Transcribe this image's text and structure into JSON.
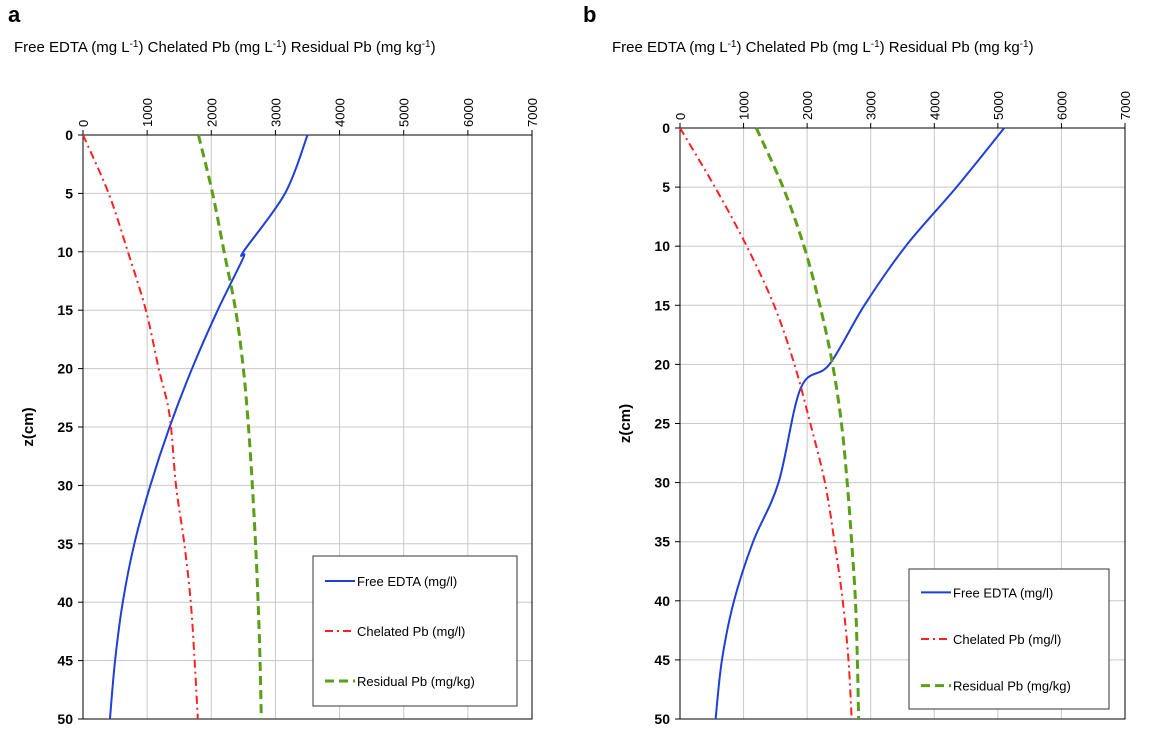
{
  "chart_data": [
    {
      "type": "line",
      "panel_label": "a",
      "title": "Free  EDTA (mg L-1) Chelated  Pb (mg L-1) Residual  Pb (mg kg-1)",
      "title_parts": [
        "Free  EDTA (mg L",
        "-1",
        ") Chelated  Pb (mg L",
        "-1",
        ") Residual  Pb (mg kg",
        "-1",
        ")"
      ],
      "ylabel": "z(cm)",
      "xlim": [
        0,
        7000
      ],
      "ylim": [
        0,
        50
      ],
      "x_axis_position": "top",
      "y_inverted": true,
      "grid": true,
      "legend_position": "bottom-right",
      "xticks": [
        0,
        1000,
        2000,
        3000,
        4000,
        5000,
        6000,
        7000
      ],
      "yticks": [
        0,
        5,
        10,
        15,
        20,
        25,
        30,
        35,
        40,
        45,
        50
      ],
      "series": [
        {
          "name": "Free EDTA (mg/l)",
          "color": "#1f3fd6",
          "dash": "solid",
          "points": [
            [
              3500,
              0
            ],
            [
              3150,
              5
            ],
            [
              2500,
              10
            ],
            [
              2500,
              10.5
            ],
            [
              2100,
              15
            ],
            [
              1700,
              20
            ],
            [
              1350,
              25
            ],
            [
              1050,
              30
            ],
            [
              800,
              35
            ],
            [
              620,
              40
            ],
            [
              500,
              45
            ],
            [
              420,
              50
            ]
          ]
        },
        {
          "name": "Chelated Pb (mg/l)",
          "color": "#ff2020",
          "dash": "dashdot",
          "points": [
            [
              0,
              0
            ],
            [
              400,
              5
            ],
            [
              700,
              10
            ],
            [
              980,
              15
            ],
            [
              1180,
              20
            ],
            [
              1350,
              24
            ],
            [
              1450,
              30
            ],
            [
              1580,
              35
            ],
            [
              1680,
              40
            ],
            [
              1740,
              45
            ],
            [
              1790,
              50
            ]
          ]
        },
        {
          "name": "Residual Pb (mg/kg)",
          "color": "#5a9e1a",
          "dash": "dashed",
          "points": [
            [
              1800,
              0
            ],
            [
              2020,
              5
            ],
            [
              2200,
              10
            ],
            [
              2380,
              15
            ],
            [
              2500,
              20
            ],
            [
              2580,
              25
            ],
            [
              2640,
              30
            ],
            [
              2690,
              35
            ],
            [
              2730,
              40
            ],
            [
              2760,
              45
            ],
            [
              2780,
              50
            ]
          ]
        }
      ]
    },
    {
      "type": "line",
      "panel_label": "b",
      "title": "Free  EDTA (mg L-1) Chelated  Pb (mg L-1) Residual  Pb (mg kg-1)",
      "title_parts": [
        "Free  EDTA (mg L",
        "-1",
        ") Chelated  Pb (mg L",
        "-1",
        ") Residual  Pb (mg kg",
        "-1",
        ")"
      ],
      "ylabel": "z(cm)",
      "xlim": [
        0,
        7000
      ],
      "ylim": [
        0,
        50
      ],
      "x_axis_position": "top",
      "y_inverted": true,
      "grid": true,
      "legend_position": "bottom-right",
      "xticks": [
        0,
        1000,
        2000,
        3000,
        4000,
        5000,
        6000,
        7000
      ],
      "yticks": [
        0,
        5,
        10,
        15,
        20,
        25,
        30,
        35,
        40,
        45,
        50
      ],
      "series": [
        {
          "name": "Free EDTA (mg/l)",
          "color": "#1f3fd6",
          "dash": "solid",
          "points": [
            [
              5100,
              0
            ],
            [
              4350,
              5
            ],
            [
              3550,
              10
            ],
            [
              2900,
              15
            ],
            [
              2350,
              20
            ],
            [
              1900,
              22
            ],
            [
              1550,
              30
            ],
            [
              1150,
              35
            ],
            [
              850,
              40
            ],
            [
              660,
              45
            ],
            [
              560,
              50
            ]
          ]
        },
        {
          "name": "Chelated Pb (mg/l)",
          "color": "#ff2020",
          "dash": "dashdot",
          "points": [
            [
              0,
              0
            ],
            [
              550,
              5
            ],
            [
              1050,
              10
            ],
            [
              1480,
              15
            ],
            [
              1800,
              20
            ],
            [
              2050,
              25
            ],
            [
              2280,
              30
            ],
            [
              2430,
              35
            ],
            [
              2560,
              40
            ],
            [
              2650,
              45
            ],
            [
              2700,
              50
            ]
          ]
        },
        {
          "name": "Residual Pb (mg/kg)",
          "color": "#5a9e1a",
          "dash": "dashed",
          "points": [
            [
              1200,
              0
            ],
            [
              1620,
              5
            ],
            [
              1950,
              10
            ],
            [
              2200,
              15
            ],
            [
              2400,
              20
            ],
            [
              2540,
              25
            ],
            [
              2630,
              30
            ],
            [
              2700,
              35
            ],
            [
              2760,
              40
            ],
            [
              2790,
              45
            ],
            [
              2810,
              50
            ]
          ]
        }
      ]
    }
  ]
}
